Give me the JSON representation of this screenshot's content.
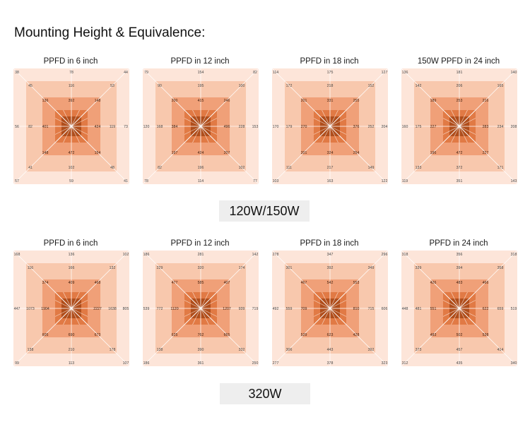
{
  "heading": "Mounting Height & Equivalence:",
  "colors": {
    "outer": "#fde5d9",
    "ring2": "#f8c8ad",
    "ring3": "#f0a078",
    "ring4": "#e17a45",
    "center": "#b04e1c",
    "lines": "#ffffff",
    "label_bg": "#eeeeee"
  },
  "groups": [
    {
      "wattage": "120W/150W",
      "panels": [
        {
          "title": "PPFD in 6 inch",
          "outer": [
            "38",
            "78",
            "44",
            "56",
            "73",
            "57",
            "59",
            "41"
          ],
          "r2": [
            "45",
            "116",
            "53",
            "82",
            "119",
            "41",
            "102",
            "48"
          ],
          "r3": [
            "136",
            "392",
            "148",
            "401",
            "424",
            "148",
            "472",
            "154"
          ]
        },
        {
          "title": "PPFD in 12 inch",
          "outer": [
            "79",
            "154",
            "82",
            "120",
            "153",
            "78",
            "114",
            "77"
          ],
          "r2": [
            "90",
            "195",
            "100",
            "168",
            "228",
            "82",
            "196",
            "102"
          ],
          "r3": [
            "200",
            "415",
            "246",
            "384",
            "496",
            "197",
            "424",
            "207"
          ]
        },
        {
          "title": "PPFD in 18 inch",
          "outer": [
            "114",
            "175",
            "127",
            "170",
            "204",
            "103",
            "163",
            "122"
          ],
          "r2": [
            "172",
            "218",
            "152",
            "179",
            "252",
            "111",
            "217",
            "149"
          ],
          "r3": [
            "201",
            "331",
            "255",
            "270",
            "376",
            "201",
            "324",
            "254"
          ]
        },
        {
          "title": "150W PPFD in 24 inch",
          "outer": [
            "136",
            "181",
            "140",
            "160",
            "208",
            "119",
            "351",
            "143"
          ],
          "r2": [
            "142",
            "206",
            "165",
            "175",
            "234",
            "133",
            "372",
            "171"
          ],
          "r3": [
            "189",
            "253",
            "216",
            "227",
            "283",
            "196",
            "472",
            "227"
          ]
        }
      ]
    },
    {
      "wattage": "320W",
      "panels": [
        {
          "title": "PPFD in 6  inch",
          "outer": [
            "168",
            "136",
            "102",
            "447",
            "805",
            "99",
            "113",
            "107"
          ],
          "r2": [
            "116",
            "166",
            "132",
            "1073",
            "1638",
            "138",
            "210",
            "178"
          ],
          "r3": [
            "374",
            "409",
            "468",
            "1904",
            "2227",
            "605",
            "690",
            "673"
          ]
        },
        {
          "title": "PPFD in 12 inch",
          "outer": [
            "186",
            "281",
            "142",
            "539",
            "719",
            "186",
            "361",
            "250"
          ],
          "r2": [
            "229",
            "320",
            "174",
            "772",
            "939",
            "138",
            "390",
            "332"
          ],
          "r3": [
            "477",
            "585",
            "407",
            "1120",
            "1207",
            "625",
            "762",
            "665"
          ]
        },
        {
          "title": "PPFD in 18 inch",
          "outer": [
            "278",
            "347",
            "296",
            "492",
            "606",
            "277",
            "378",
            "323"
          ],
          "r2": [
            "301",
            "392",
            "349",
            "559",
            "715",
            "306",
            "443",
            "392"
          ],
          "r3": [
            "467",
            "542",
            "553",
            "709",
            "810",
            "529",
            "623",
            "428"
          ]
        },
        {
          "title": "PPFD in 24 inch",
          "outer": [
            "318",
            "356",
            "318",
            "448",
            "519",
            "312",
            "435",
            "340"
          ],
          "r2": [
            "339",
            "394",
            "358",
            "481",
            "659",
            "373",
            "457",
            "414"
          ],
          "r3": [
            "426",
            "483",
            "466",
            "551",
            "622",
            "483",
            "502",
            "538"
          ]
        }
      ]
    }
  ]
}
